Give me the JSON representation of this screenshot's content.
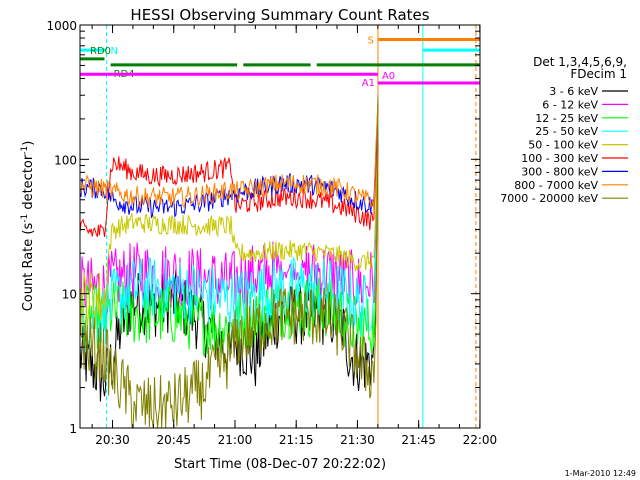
{
  "chart_data": {
    "type": "line",
    "title": "HESSI Observing Summary Count Rates",
    "xlabel": "Start Time (08-Dec-07 20:22:02)",
    "ylabel_main": "Count Rate (s",
    "ylabel_sup1": "-1",
    "ylabel_mid": " detector",
    "ylabel_sup2": "-1",
    "ylabel_end": ")",
    "y_scale": "log",
    "ylim": [
      1,
      1000
    ],
    "xlim_minutes": [
      0,
      98
    ],
    "x_ticks": [
      {
        "label": "20:30",
        "minute": 7.97
      },
      {
        "label": "20:45",
        "minute": 22.97
      },
      {
        "label": "21:00",
        "minute": 37.97
      },
      {
        "label": "21:15",
        "minute": 52.97
      },
      {
        "label": "21:30",
        "minute": 67.97
      },
      {
        "label": "21:45",
        "minute": 82.97
      },
      {
        "label": "22:00",
        "minute": 97.97
      }
    ],
    "y_ticks": [
      {
        "label": "1",
        "value": 1
      },
      {
        "label": "10",
        "value": 10
      },
      {
        "label": "100",
        "value": 100
      },
      {
        "label": "1000",
        "value": 1000
      }
    ],
    "legend_header": [
      "Det 1,3,4,5,6,9,",
      "FDecim 1"
    ],
    "legend_position": "right",
    "series": [
      {
        "name": "3 - 6 keV",
        "color": "#000000",
        "values": [
          3.5,
          2.2,
          3.2,
          9,
          8,
          9,
          6,
          3.5,
          4.5,
          3.2,
          7,
          7,
          7,
          6,
          3.5,
          3,
          3.2
        ]
      },
      {
        "name": "6 - 12 keV",
        "color": "#ff00ff",
        "values": [
          11,
          11,
          12.5,
          14,
          14.5,
          14,
          13,
          12,
          12.5,
          14,
          15,
          15,
          14.5,
          13.5,
          12.5,
          11.5,
          13
        ]
      },
      {
        "name": "12 - 25 keV",
        "color": "#00ff00",
        "values": [
          7,
          6.5,
          7.5,
          7,
          7,
          7,
          6,
          5.5,
          6,
          7,
          8,
          8,
          8,
          7,
          6,
          5.5,
          6
        ]
      },
      {
        "name": "25 - 50 keV",
        "color": "#00ffff",
        "values": [
          6,
          7,
          9,
          11,
          11,
          11,
          10,
          9,
          9,
          10,
          11,
          11,
          11,
          10,
          9,
          8,
          9
        ]
      },
      {
        "name": "50 - 100 keV",
        "color": "#c8c800",
        "values": [
          9,
          9,
          30,
          34,
          33,
          33,
          32,
          32,
          20,
          20,
          21,
          21,
          20,
          19,
          18,
          17,
          18
        ]
      },
      {
        "name": "100 - 300 keV",
        "color": "#ff0000",
        "values": [
          30,
          28,
          95,
          80,
          75,
          76,
          80,
          88,
          45,
          48,
          52,
          52,
          48,
          44,
          42,
          38,
          34
        ]
      },
      {
        "name": "300 - 800 keV",
        "color": "#0000ff",
        "values": [
          62,
          60,
          50,
          45,
          44,
          44,
          47,
          55,
          55,
          60,
          66,
          66,
          62,
          57,
          52,
          48,
          45
        ]
      },
      {
        "name": "800 - 7000 keV",
        "color": "#ff8000",
        "values": [
          65,
          60,
          57,
          53,
          52,
          52,
          54,
          59,
          57,
          61,
          66,
          66,
          64,
          60,
          56,
          51,
          48
        ]
      },
      {
        "name": "7000 - 20000 keV",
        "color": "#808000",
        "values": [
          4.5,
          3.5,
          2.5,
          1.5,
          1.4,
          1.5,
          2,
          3.5,
          4.5,
          5.5,
          7,
          7,
          6.5,
          5.5,
          4.5,
          3,
          2.5
        ]
      }
    ],
    "series_minutes": [
      0,
      6,
      8,
      13,
      18,
      23,
      30,
      37,
      38,
      43,
      49,
      55,
      60,
      64,
      66,
      69,
      72
    ],
    "flare_rise": {
      "start_minute": 72,
      "peak_minute": 73,
      "peak_value": 300
    },
    "state_flags": [
      {
        "label": "N",
        "color": "#00ffff",
        "level": 650,
        "segments": [
          [
            0,
            6.5
          ],
          [
            84,
            98
          ]
        ]
      },
      {
        "label": "RD0",
        "color": "#008000",
        "level": 560,
        "segments": [
          [
            0,
            6
          ]
        ]
      },
      {
        "label": "RD4",
        "color": "#008000",
        "level": 505,
        "segments": [
          [
            7.5,
            38.5
          ],
          [
            40,
            56.5
          ],
          [
            58,
            98
          ]
        ]
      },
      {
        "label": "S",
        "color": "#ff8000",
        "level": 780,
        "segments": [
          [
            73,
            98
          ]
        ]
      },
      {
        "label": "A1",
        "color": "#ff00ff",
        "level": 430,
        "segments": [
          [
            0,
            73
          ]
        ]
      },
      {
        "label": "A0",
        "color": "#ff00ff",
        "level": 370,
        "segments": [
          [
            73,
            98
          ]
        ]
      }
    ],
    "vertical_markers": [
      {
        "minute": 6.5,
        "color": "#00ffff",
        "style": "dashed"
      },
      {
        "minute": 73,
        "color": "#ff8000",
        "style": "solid"
      },
      {
        "minute": 84,
        "color": "#00ffff",
        "style": "solid"
      },
      {
        "minute": 97,
        "color": "#ff8000",
        "style": "dashed"
      }
    ],
    "grid": false
  },
  "footer": {
    "timestamp": "1-Mar-2010 12:49"
  }
}
